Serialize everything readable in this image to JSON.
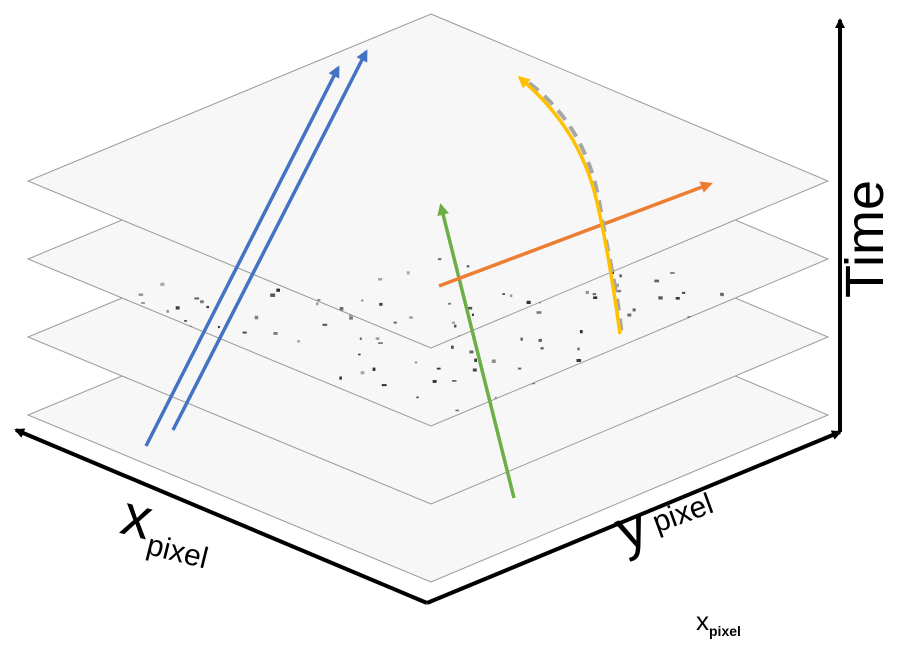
{
  "axes": {
    "x": {
      "main": "x",
      "sub": "pixel"
    },
    "y": {
      "main": "y",
      "sub": "pixel"
    },
    "time": "Time",
    "corner": {
      "main": "x",
      "sub": "pixel"
    }
  },
  "frames": {
    "count": 4,
    "background": "#f7f7f7",
    "border_color": "#9a9a9a",
    "spot_color": "#222222"
  },
  "tracks": [
    {
      "name": "blue-track-1",
      "color": "#4472c4"
    },
    {
      "name": "blue-track-2",
      "color": "#4472c4"
    },
    {
      "name": "green-track",
      "color": "#70ad47"
    },
    {
      "name": "orange-track",
      "color": "#ed7d31"
    },
    {
      "name": "yellow-track",
      "color": "#ffc000"
    },
    {
      "name": "gray-dashed-track",
      "color": "#a6a6a6"
    }
  ],
  "axis_color": "#000000"
}
